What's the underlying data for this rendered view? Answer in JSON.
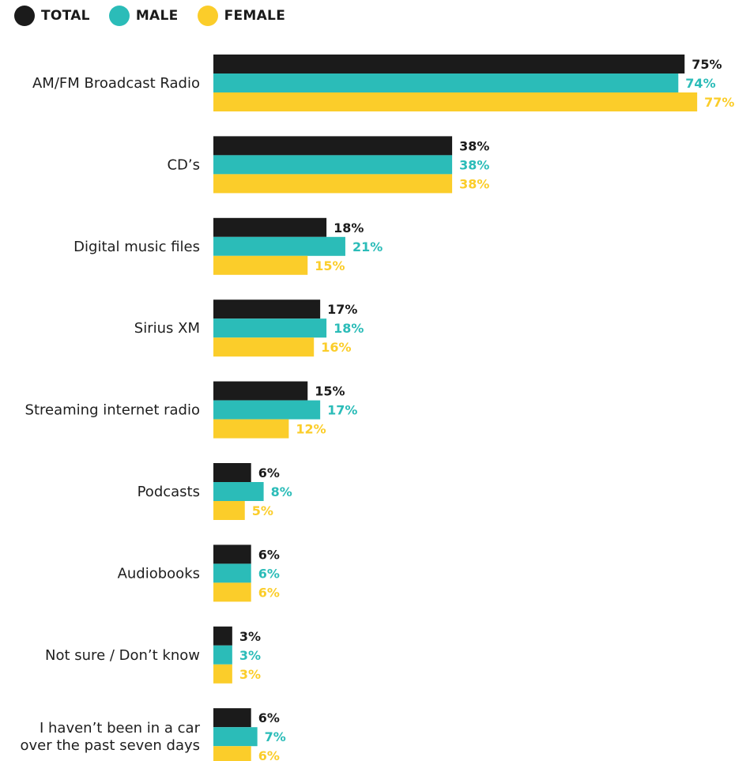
{
  "chart_data": {
    "type": "bar",
    "orientation": "horizontal",
    "categories": [
      [
        "AM/FM Broadcast Radio"
      ],
      [
        "CD’s"
      ],
      [
        "Digital music files"
      ],
      [
        "Sirius XM"
      ],
      [
        "Streaming internet radio"
      ],
      [
        "Podcasts"
      ],
      [
        "Audiobooks"
      ],
      [
        "Not sure / Don’t know"
      ],
      [
        "I haven’t been in a car",
        "over the past seven days"
      ]
    ],
    "series": [
      {
        "name": "TOTAL",
        "color": "#1b1b1b",
        "values": [
          75,
          38,
          18,
          17,
          15,
          6,
          6,
          3,
          6
        ]
      },
      {
        "name": "MALE",
        "color": "#2bbcb8",
        "values": [
          74,
          38,
          21,
          18,
          17,
          8,
          6,
          3,
          7
        ]
      },
      {
        "name": "FEMALE",
        "color": "#fbcd2a",
        "values": [
          77,
          38,
          15,
          16,
          12,
          5,
          6,
          3,
          6
        ]
      }
    ],
    "value_suffix": "%",
    "xlim": [
      0,
      77
    ],
    "grid": false,
    "legend_position": "top-left",
    "title": "",
    "xlabel": "",
    "ylabel": ""
  }
}
